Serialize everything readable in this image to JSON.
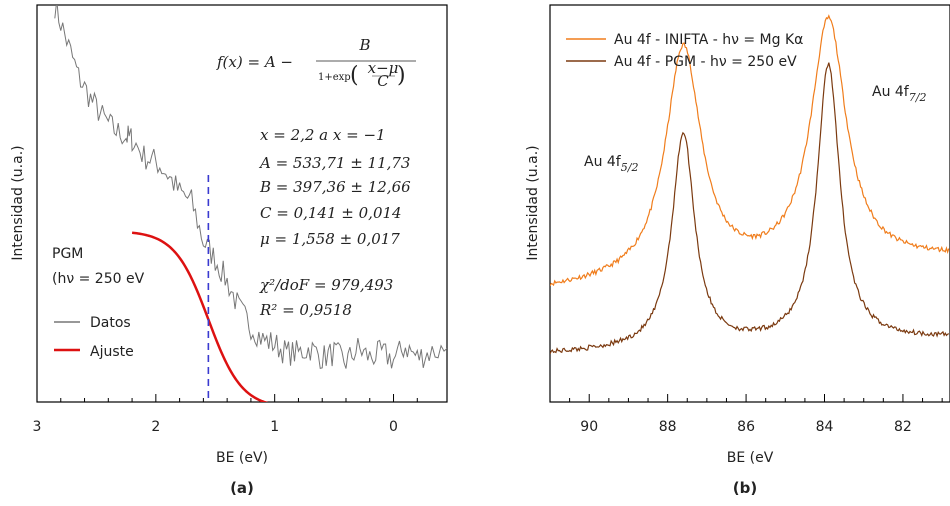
{
  "chart_data": [
    {
      "panel": "(a)",
      "type": "line",
      "xlabel": "BE (eV)",
      "ylabel": "Intensidad (u.a.)",
      "x_reversed": true,
      "xlim": [
        3,
        -0.45
      ],
      "ylim": [
        150,
        1040
      ],
      "xticks": [
        3,
        2,
        1,
        0
      ],
      "legend_title": "PGM",
      "legend_subtitle": "(hν = 250 eV",
      "legend": [
        {
          "name": "Datos",
          "color": "#777777"
        },
        {
          "name": "Ajuste",
          "color": "#dd1111"
        }
      ],
      "fit": {
        "A": 533.71,
        "B": 397.36,
        "C": 0.141,
        "mu": 1.558,
        "x_from": 2.2,
        "x_to": -0.45
      },
      "vline_x": 1.558,
      "vline_color": "#3a3ad0",
      "data_series": {
        "name": "Datos",
        "x": [
          2.85,
          2.75,
          2.65,
          2.55,
          2.45,
          2.35,
          2.25,
          2.2,
          2.1,
          2.0,
          1.9,
          1.8,
          1.7,
          1.6,
          1.5,
          1.4,
          1.3,
          1.2,
          1.1,
          1.0,
          0.9,
          0.8,
          0.7,
          0.6,
          0.5,
          0.4,
          0.3,
          0.2,
          0.1,
          0.0,
          -0.1,
          -0.2,
          -0.3,
          -0.45
        ],
        "y": [
          1040,
          960,
          880,
          830,
          790,
          760,
          745,
          740,
          700,
          690,
          660,
          620,
          600,
          510,
          470,
          420,
          360,
          320,
          290,
          280,
          260,
          260,
          270,
          250,
          260,
          240,
          270,
          250,
          260,
          245,
          275,
          250,
          260,
          270
        ]
      },
      "annotations": {
        "formula": "f(x) = A − B / (1+exp((x−μ)/C))",
        "range": "x = 2,2 a x = −1",
        "A": "A = 533,71 ± 11,73",
        "B": "B = 397,36 ± 12,66",
        "C": "C = 0,141 ± 0,014",
        "mu": "μ = 1,558 ± 0,017",
        "chi2": "χ²/doF = 979,493",
        "r2": "R² = 0,9518"
      }
    },
    {
      "panel": "(b)",
      "type": "line",
      "xlabel": "BE (eV",
      "ylabel": "Intensidad (u.a.)",
      "x_reversed": true,
      "xlim": [
        91.0,
        80.8
      ],
      "ylim": [
        0,
        1
      ],
      "xticks": [
        90,
        88,
        86,
        84,
        82
      ],
      "series": [
        {
          "name": "Au 4f - INIFTA - hν = Mg Kα",
          "color": "#f07d1c",
          "baseline_left": 0.28,
          "baseline_right": 0.36,
          "peaks": [
            {
              "x": 87.6,
              "height": 0.58,
              "width": 0.55
            },
            {
              "x": 83.9,
              "height": 0.62,
              "width": 0.55
            }
          ]
        },
        {
          "name": "Au 4f - PGM - hν = 250 eV",
          "color": "#7b3a10",
          "baseline_left": 0.12,
          "baseline_right": 0.16,
          "peaks": [
            {
              "x": 87.6,
              "height": 0.54,
              "width": 0.35
            },
            {
              "x": 83.9,
              "height": 0.7,
              "width": 0.35
            }
          ]
        }
      ],
      "peak_labels": [
        {
          "text": "Au 4f",
          "sub": "5/2",
          "x": 87.6
        },
        {
          "text": "Au 4f",
          "sub": "7/2",
          "x": 83.9
        }
      ]
    }
  ]
}
